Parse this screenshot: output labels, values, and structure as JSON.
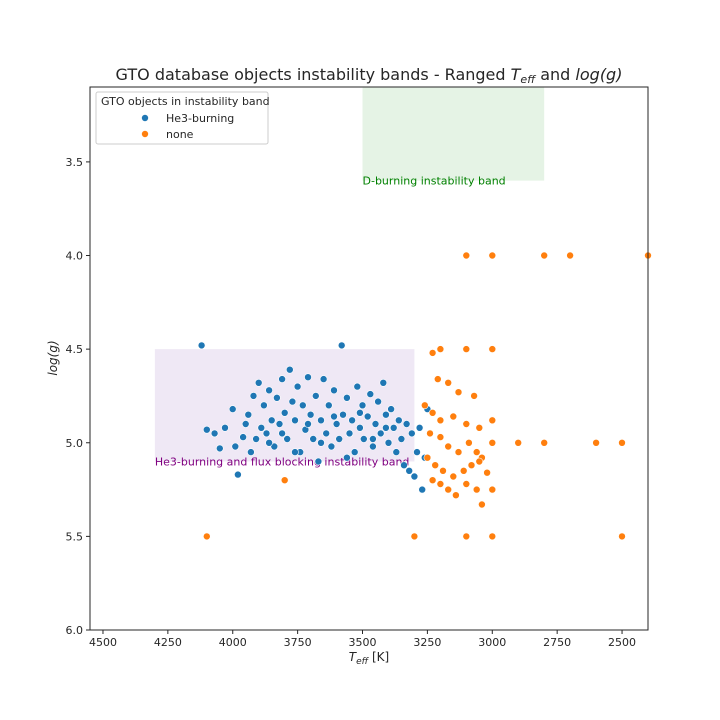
{
  "chart_data": {
    "type": "scatter",
    "title_main": "GTO database objects instability bands - Ranged ",
    "title_teff": "T",
    "title_teff_sub": "eff",
    "title_and": " and ",
    "title_logg": "log(g)",
    "xlabel_main": "T",
    "xlabel_sub": "eff",
    "xlabel_unit": " [K]",
    "ylabel": "log(g)",
    "xlim": [
      4550,
      2400
    ],
    "ylim": [
      6.0,
      3.1
    ],
    "x_reversed": true,
    "y_reversed": true,
    "x_ticks": [
      4500,
      4250,
      4000,
      3750,
      3500,
      3250,
      3000,
      2750,
      2500
    ],
    "y_ticks": [
      3.5,
      4.0,
      4.5,
      5.0,
      5.5,
      6.0
    ],
    "y_tick_labels": [
      "3.5",
      "4.0",
      "4.5",
      "5.0",
      "5.5",
      "6.0"
    ],
    "grid": false,
    "legend": {
      "title": "GTO objects in instability band",
      "placement": "top-left",
      "entries": [
        "He3-burning",
        "none"
      ]
    },
    "bands": [
      {
        "label": "D-burning instability band",
        "x_range": [
          3500,
          2800
        ],
        "y_range": [
          3.1,
          3.6
        ],
        "color": "#2ca02c",
        "opacity": 0.12,
        "label_color": "#008000",
        "label_at": [
          3500,
          3.6
        ]
      },
      {
        "label": "He3-burning and flux blocking instability band",
        "x_range": [
          4300,
          3300
        ],
        "y_range": [
          4.5,
          5.1
        ],
        "color": "#9467bd",
        "opacity": 0.15,
        "label_color": "#800080",
        "label_at": [
          4300,
          5.1
        ]
      }
    ],
    "series": [
      {
        "name": "He3-burning",
        "color": "#1f77b4",
        "points": [
          [
            4120,
            4.48
          ],
          [
            4100,
            4.93
          ],
          [
            4070,
            4.95
          ],
          [
            4050,
            5.03
          ],
          [
            4030,
            4.92
          ],
          [
            4000,
            4.82
          ],
          [
            3990,
            5.02
          ],
          [
            3980,
            5.17
          ],
          [
            3960,
            4.97
          ],
          [
            3950,
            4.9
          ],
          [
            3940,
            4.85
          ],
          [
            3930,
            5.05
          ],
          [
            3920,
            4.75
          ],
          [
            3910,
            4.98
          ],
          [
            3900,
            4.68
          ],
          [
            3890,
            4.92
          ],
          [
            3880,
            4.8
          ],
          [
            3870,
            4.95
          ],
          [
            3860,
            4.72
          ],
          [
            3850,
            4.88
          ],
          [
            3840,
            5.02
          ],
          [
            3830,
            4.76
          ],
          [
            3820,
            4.9
          ],
          [
            3810,
            4.66
          ],
          [
            3800,
            4.84
          ],
          [
            3790,
            4.98
          ],
          [
            3780,
            4.61
          ],
          [
            3770,
            4.78
          ],
          [
            3760,
            4.88
          ],
          [
            3750,
            4.7
          ],
          [
            3740,
            5.05
          ],
          [
            3730,
            4.8
          ],
          [
            3720,
            4.93
          ],
          [
            3710,
            4.65
          ],
          [
            3700,
            4.85
          ],
          [
            3690,
            4.98
          ],
          [
            3680,
            4.75
          ],
          [
            3670,
            5.1
          ],
          [
            3660,
            4.88
          ],
          [
            3650,
            4.66
          ],
          [
            3640,
            4.95
          ],
          [
            3630,
            4.8
          ],
          [
            3620,
            5.02
          ],
          [
            3610,
            4.72
          ],
          [
            3600,
            4.9
          ],
          [
            3590,
            4.98
          ],
          [
            3580,
            4.48
          ],
          [
            3575,
            4.85
          ],
          [
            3560,
            4.76
          ],
          [
            3550,
            4.95
          ],
          [
            3540,
            4.88
          ],
          [
            3530,
            5.05
          ],
          [
            3520,
            4.7
          ],
          [
            3510,
            4.92
          ],
          [
            3500,
            4.8
          ],
          [
            3495,
            4.98
          ],
          [
            3480,
            4.86
          ],
          [
            3470,
            4.74
          ],
          [
            3460,
            5.02
          ],
          [
            3450,
            4.9
          ],
          [
            3440,
            4.78
          ],
          [
            3430,
            4.95
          ],
          [
            3420,
            4.68
          ],
          [
            3410,
            4.85
          ],
          [
            3400,
            5.0
          ],
          [
            3390,
            4.82
          ],
          [
            3380,
            4.92
          ],
          [
            3370,
            5.05
          ],
          [
            3360,
            4.88
          ],
          [
            3350,
            4.98
          ],
          [
            3340,
            5.12
          ],
          [
            3330,
            4.9
          ],
          [
            3320,
            5.15
          ],
          [
            3310,
            4.95
          ],
          [
            3300,
            5.18
          ],
          [
            3290,
            5.05
          ],
          [
            3280,
            4.92
          ],
          [
            3270,
            5.25
          ],
          [
            3260,
            5.08
          ],
          [
            3250,
            4.82
          ],
          [
            3860,
            5.0
          ],
          [
            3760,
            5.05
          ],
          [
            3660,
            5.0
          ],
          [
            3560,
            5.08
          ],
          [
            3460,
            4.98
          ],
          [
            3610,
            4.86
          ],
          [
            3510,
            4.84
          ],
          [
            3410,
            4.92
          ],
          [
            3710,
            4.9
          ],
          [
            3810,
            4.95
          ]
        ]
      },
      {
        "name": "none",
        "color": "#ff7f0e",
        "points": [
          [
            3100,
            4.0
          ],
          [
            3000,
            4.0
          ],
          [
            2800,
            4.0
          ],
          [
            2700,
            4.0
          ],
          [
            2400,
            4.0
          ],
          [
            3230,
            4.52
          ],
          [
            3200,
            4.5
          ],
          [
            3100,
            4.5
          ],
          [
            3000,
            4.5
          ],
          [
            3210,
            4.66
          ],
          [
            3170,
            4.68
          ],
          [
            3130,
            4.73
          ],
          [
            3070,
            4.75
          ],
          [
            3260,
            4.8
          ],
          [
            3230,
            4.84
          ],
          [
            3200,
            4.88
          ],
          [
            3150,
            4.86
          ],
          [
            3100,
            4.9
          ],
          [
            3050,
            4.92
          ],
          [
            3000,
            4.88
          ],
          [
            3240,
            4.95
          ],
          [
            3200,
            4.97
          ],
          [
            3170,
            5.02
          ],
          [
            3130,
            5.05
          ],
          [
            3090,
            5.0
          ],
          [
            3060,
            5.05
          ],
          [
            3040,
            5.08
          ],
          [
            3000,
            5.0
          ],
          [
            3250,
            5.08
          ],
          [
            3220,
            5.12
          ],
          [
            3190,
            5.15
          ],
          [
            3150,
            5.18
          ],
          [
            3110,
            5.15
          ],
          [
            3080,
            5.12
          ],
          [
            3050,
            5.1
          ],
          [
            3020,
            5.16
          ],
          [
            3230,
            5.2
          ],
          [
            3200,
            5.22
          ],
          [
            3170,
            5.25
          ],
          [
            3140,
            5.28
          ],
          [
            3100,
            5.22
          ],
          [
            3060,
            5.25
          ],
          [
            3040,
            5.33
          ],
          [
            3000,
            5.25
          ],
          [
            3800,
            5.2
          ],
          [
            2900,
            5.0
          ],
          [
            2800,
            5.0
          ],
          [
            2600,
            5.0
          ],
          [
            2500,
            5.0
          ],
          [
            4100,
            5.5
          ],
          [
            3300,
            5.5
          ],
          [
            3100,
            5.5
          ],
          [
            3000,
            5.5
          ],
          [
            2500,
            5.5
          ]
        ]
      }
    ]
  }
}
